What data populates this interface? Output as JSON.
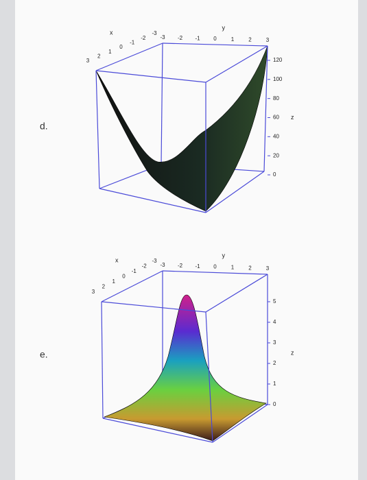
{
  "items": [
    {
      "label": "d.",
      "plot": {
        "x_label": "x",
        "y_label": "y",
        "z_label": "z",
        "x_ticks": [
          3,
          2,
          1,
          0,
          -1,
          -2,
          -3
        ],
        "y_ticks": [
          -3,
          -2,
          -1,
          0,
          1,
          2,
          3
        ],
        "z_ticks": [
          120,
          100,
          80,
          60,
          40,
          20,
          0
        ]
      }
    },
    {
      "label": "e.",
      "plot": {
        "x_label": "x",
        "y_label": "y",
        "z_label": "z",
        "x_ticks": [
          3,
          2,
          1,
          0,
          -1,
          -2,
          -3
        ],
        "y_ticks": [
          -3,
          -2,
          -1,
          0,
          1,
          2,
          3
        ],
        "z_ticks": [
          5,
          4,
          3,
          2,
          1,
          0
        ]
      }
    }
  ]
}
